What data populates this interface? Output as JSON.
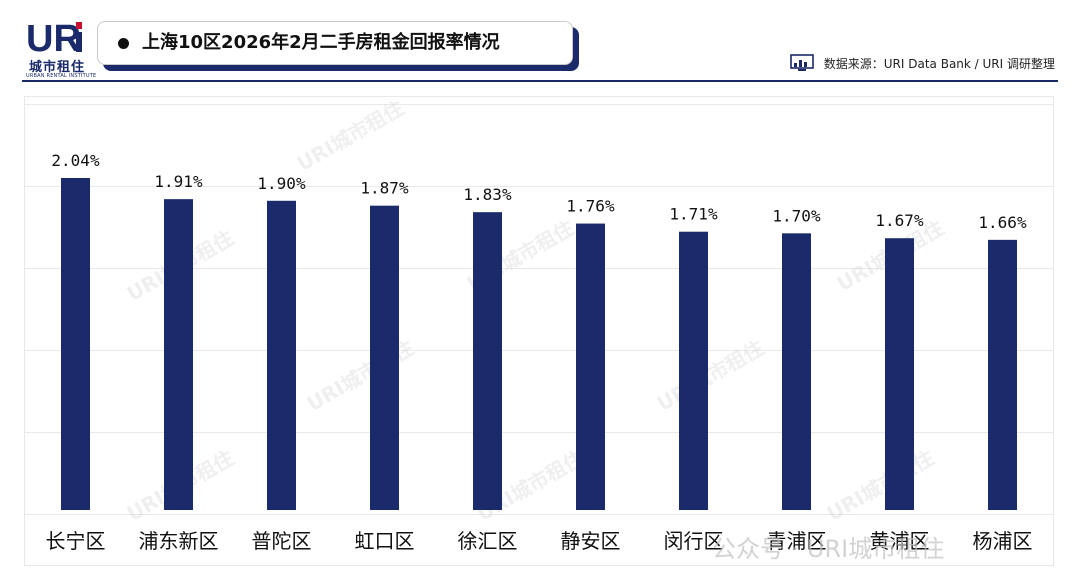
{
  "logo": {
    "mark": "URi",
    "cn": "城市租住",
    "en": "URBAN RENTAL INSTITUTE"
  },
  "header": {
    "title": "上海10区2026年2月二手房租金回报率情况"
  },
  "source": {
    "text": "数据来源：URI Data Bank / URI 调研整理",
    "icon": "bar-chart-monitor-icon"
  },
  "watermark": {
    "text": "URI城市租住",
    "wechat": "公众号 · URI城市租住"
  },
  "colors": {
    "bar": "#1b2a6b",
    "accent": "#1b2a6b",
    "logo_red": "#c8102e"
  },
  "chart_data": {
    "type": "bar",
    "categories": [
      "长宁区",
      "浦东新区",
      "普陀区",
      "虹口区",
      "徐汇区",
      "静安区",
      "闵行区",
      "青浦区",
      "黄浦区",
      "杨浦区"
    ],
    "values": [
      2.04,
      1.91,
      1.9,
      1.87,
      1.83,
      1.76,
      1.71,
      1.7,
      1.67,
      1.66
    ],
    "value_labels": [
      "2.04%",
      "1.91%",
      "1.90%",
      "1.87%",
      "1.83%",
      "1.76%",
      "1.71%",
      "1.70%",
      "1.67%",
      "1.66%"
    ],
    "title": "上海10区2026年2月二手房租金回报率情况",
    "xlabel": "",
    "ylabel": "",
    "ylim": [
      0,
      2.1
    ],
    "grid": true,
    "legend": "none"
  }
}
